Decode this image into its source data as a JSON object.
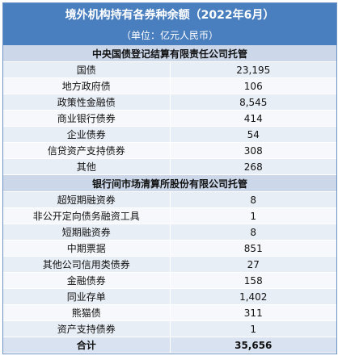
{
  "title": "境外机构持有各券种余额（2022年6月）",
  "unit": "（单位：亿元人民币）",
  "sections": [
    {
      "heading": "中央国债登记结算有限责任公司托管",
      "rows": [
        {
          "name": "国债",
          "value": "23,195"
        },
        {
          "name": "地方政府债",
          "value": "106"
        },
        {
          "name": "政策性金融债",
          "value": "8,545"
        },
        {
          "name": "商业银行债券",
          "value": "414"
        },
        {
          "name": "企业债券",
          "value": "54"
        },
        {
          "name": "信贷资产支持债券",
          "value": "308"
        },
        {
          "name": "其他",
          "value": "268"
        }
      ]
    },
    {
      "heading": "银行间市场清算所股份有限公司托管",
      "rows": [
        {
          "name": "超短期融资券",
          "value": "8"
        },
        {
          "name": "非公开定向债务融资工具",
          "value": "1"
        },
        {
          "name": "短期融资券",
          "value": "8"
        },
        {
          "name": "中期票据",
          "value": "851"
        },
        {
          "name": "其他公司信用类债券",
          "value": "27"
        },
        {
          "name": "金融债券",
          "value": "158"
        },
        {
          "name": "同业存单",
          "value": "1,402"
        },
        {
          "name": "熊猫债",
          "value": "311"
        },
        {
          "name": "资产支持债券",
          "value": "1"
        }
      ]
    }
  ],
  "total": {
    "name": "合计",
    "value": "35,656"
  }
}
